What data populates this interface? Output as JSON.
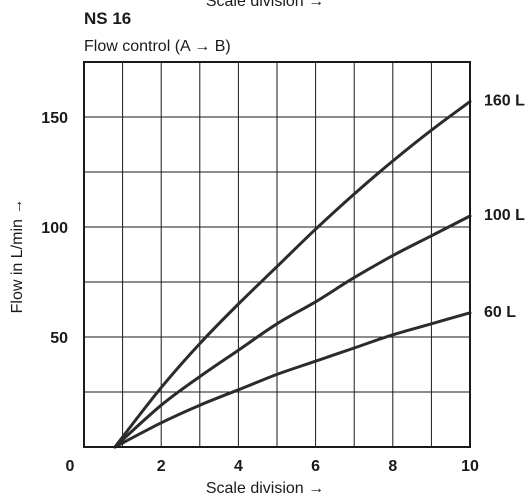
{
  "top_clipped_text": "Scale division →",
  "chart_data": {
    "type": "line",
    "title": "NS 16",
    "subtitle": "Flow control (A → B)",
    "xlabel": "Scale division →",
    "ylabel": "Flow in L/min →",
    "xlim": [
      0,
      10
    ],
    "ylim": [
      0,
      175
    ],
    "x_ticks": [
      0,
      2,
      4,
      6,
      8,
      10
    ],
    "y_ticks": [
      50,
      100,
      150
    ],
    "grid": true,
    "series": [
      {
        "name": "160 L",
        "x": [
          0.8,
          2,
          3,
          4,
          5,
          6,
          7,
          8,
          9,
          10
        ],
        "y": [
          0,
          27,
          47,
          65,
          82,
          99,
          115,
          130,
          144,
          157
        ]
      },
      {
        "name": "100 L",
        "x": [
          0.8,
          2,
          3,
          4,
          5,
          6,
          7,
          8,
          9,
          10
        ],
        "y": [
          0,
          19,
          32,
          44,
          56,
          66,
          77,
          87,
          96,
          105
        ]
      },
      {
        "name": "60 L",
        "x": [
          0.8,
          2,
          3,
          4,
          5,
          6,
          7,
          8,
          9,
          10
        ],
        "y": [
          0,
          11,
          19,
          26,
          33,
          39,
          45,
          51,
          56,
          61
        ]
      }
    ]
  }
}
